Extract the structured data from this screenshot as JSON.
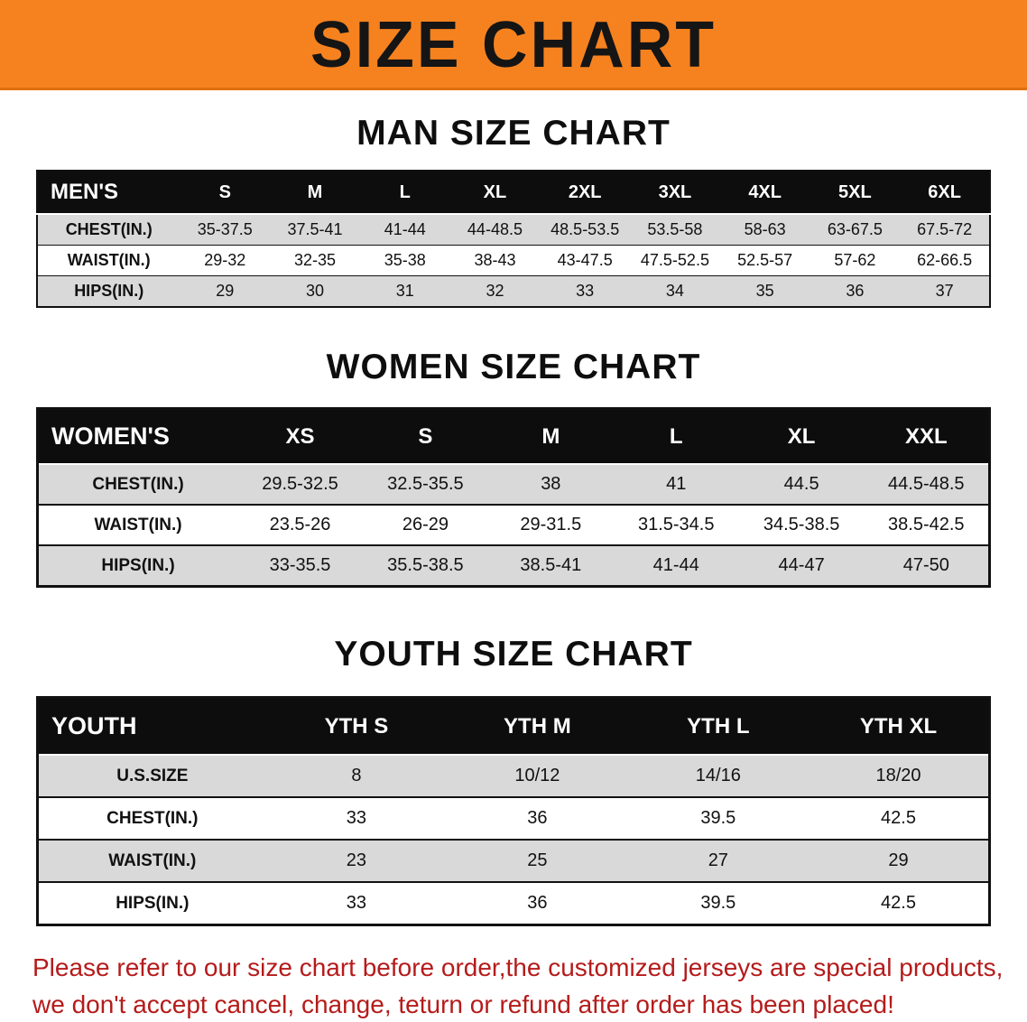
{
  "banner": {
    "title": "SIZE CHART",
    "background_color": "#F6821F",
    "text_color": "#151515"
  },
  "sections": [
    {
      "id": "men",
      "heading": "MAN SIZE CHART",
      "table": {
        "header": [
          "MEN'S",
          "S",
          "M",
          "L",
          "XL",
          "2XL",
          "3XL",
          "4XL",
          "5XL",
          "6XL"
        ],
        "rows": [
          [
            "CHEST(IN.)",
            "35-37.5",
            "37.5-41",
            "41-44",
            "44-48.5",
            "48.5-53.5",
            "53.5-58",
            "58-63",
            "63-67.5",
            "67.5-72"
          ],
          [
            "WAIST(IN.)",
            "29-32",
            "32-35",
            "35-38",
            "38-43",
            "43-47.5",
            "47.5-52.5",
            "52.5-57",
            "57-62",
            "62-66.5"
          ],
          [
            "HIPS(IN.)",
            "29",
            "30",
            "31",
            "32",
            "33",
            "34",
            "35",
            "36",
            "37"
          ]
        ]
      }
    },
    {
      "id": "women",
      "heading": "WOMEN SIZE CHART",
      "table": {
        "header": [
          "WOMEN'S",
          "XS",
          "S",
          "M",
          "L",
          "XL",
          "XXL"
        ],
        "rows": [
          [
            "CHEST(IN.)",
            "29.5-32.5",
            "32.5-35.5",
            "38",
            "41",
            "44.5",
            "44.5-48.5"
          ],
          [
            "WAIST(IN.)",
            "23.5-26",
            "26-29",
            "29-31.5",
            "31.5-34.5",
            "34.5-38.5",
            "38.5-42.5"
          ],
          [
            "HIPS(IN.)",
            "33-35.5",
            "35.5-38.5",
            "38.5-41",
            "41-44",
            "44-47",
            "47-50"
          ]
        ]
      }
    },
    {
      "id": "youth",
      "heading": "YOUTH SIZE CHART",
      "table": {
        "header": [
          "YOUTH",
          "YTH S",
          "YTH M",
          "YTH L",
          "YTH XL"
        ],
        "rows": [
          [
            "U.S.SIZE",
            "8",
            "10/12",
            "14/16",
            "18/20"
          ],
          [
            "CHEST(IN.)",
            "33",
            "36",
            "39.5",
            "42.5"
          ],
          [
            "WAIST(IN.)",
            "23",
            "25",
            "27",
            "29"
          ],
          [
            "HIPS(IN.)",
            "33",
            "36",
            "39.5",
            "42.5"
          ]
        ]
      }
    }
  ],
  "disclaimer": {
    "color": "#B51B1B",
    "lines": [
      "Please refer to our size chart before order,the customized jerseys are special products,",
      "we don't accept cancel, change, teturn or refund after order has been placed!"
    ]
  }
}
